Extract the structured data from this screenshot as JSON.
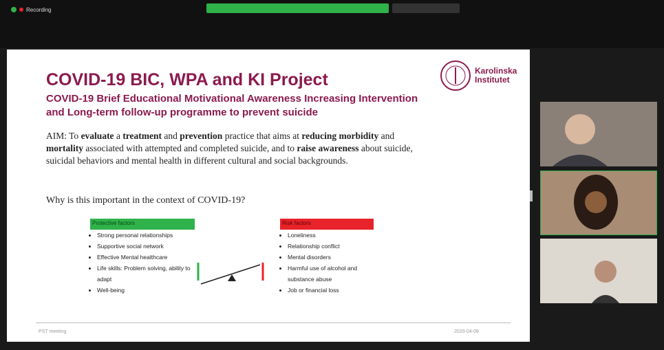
{
  "recording": "Recording",
  "slide": {
    "title": "COVID-19 BIC, WPA and KI Project",
    "subtitle_lines": [
      "COVID-19 Brief Educational Motivational Awareness Increasing Intervention",
      "and Long-term follow-up programme to prevent suicide"
    ],
    "logo": "Karolinska Institutet",
    "aim": [
      {
        "text": "AIM: To ",
        "bold": false
      },
      {
        "text": "evaluate",
        "bold": true
      },
      {
        "text": " a ",
        "bold": false
      },
      {
        "text": "treatment",
        "bold": true
      },
      {
        "text": " and ",
        "bold": false
      },
      {
        "text": "prevention",
        "bold": true
      },
      {
        "text": " practice that aims at ",
        "bold": false
      },
      {
        "text": "reducing morbidity",
        "bold": true
      },
      {
        "text": " and ",
        "bold": false
      },
      {
        "text": "mortality",
        "bold": true
      },
      {
        "text": " associated with attempted and completed suicide, and to ",
        "bold": false
      },
      {
        "text": "raise awareness",
        "bold": true
      },
      {
        "text": " about suicide, suicidal behaviors and mental health in different cultural and social backgrounds.",
        "bold": false
      }
    ],
    "question": "Why is this important in the context of COVID-19?",
    "protective": {
      "heading": "Protective factors",
      "items": [
        "Strong personal relationships",
        "Supportive social network",
        "Effective Mental healthcare",
        "Life skills: Problem solving, ability to adapt",
        "Well-being"
      ]
    },
    "risk": {
      "heading": "Risk factors",
      "items": [
        "Loneliness",
        "Relationship conflict",
        "Mental disorders",
        "Harmful use of alcohol and substance abuse",
        "Job or financial loss"
      ]
    },
    "footer_left": "PST meeting",
    "footer_right": "2020-04-08"
  }
}
